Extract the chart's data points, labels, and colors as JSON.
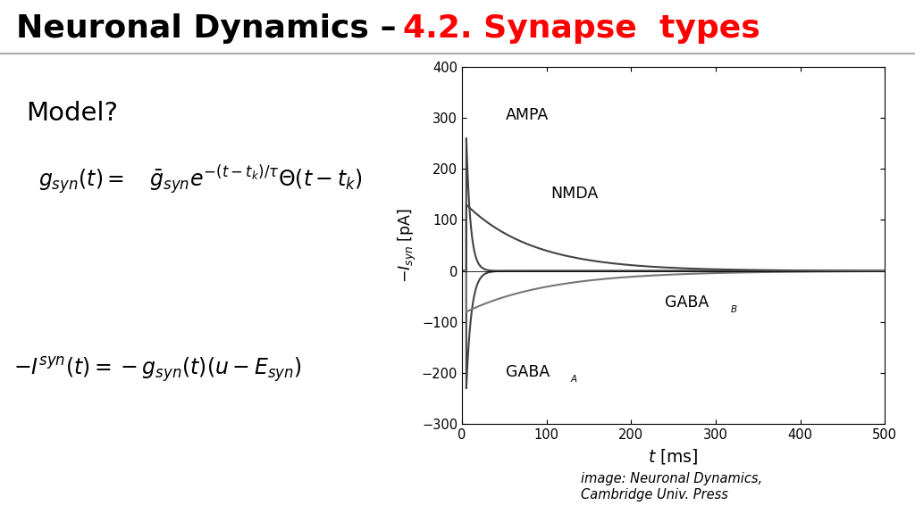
{
  "title_black": "Neuronal Dynamics – ",
  "title_red": "4.2. Synapse  types",
  "title_fontsize": 26,
  "bg_color": "#ffffff",
  "model_label": "Model?",
  "plot_xlim": [
    0,
    500
  ],
  "plot_ylim": [
    -300,
    400
  ],
  "plot_yticks": [
    -300,
    -200,
    -100,
    0,
    100,
    200,
    300,
    400
  ],
  "plot_xticks": [
    0,
    100,
    200,
    300,
    400,
    500
  ],
  "xlabel": "$t$ [ms]",
  "ylabel": "$-I_{\\mathit{syn}}$ [pA]",
  "caption": "image: Neuronal Dynamics,\nCambridge Univ. Press",
  "ampa_tau": 5,
  "ampa_peak": 260,
  "nmda_tau": 80,
  "nmda_peak": 130,
  "gabaa_tau": 6,
  "gabaa_peak": -230,
  "gabab_tau": 100,
  "gabab_peak": -80,
  "t0": 5
}
